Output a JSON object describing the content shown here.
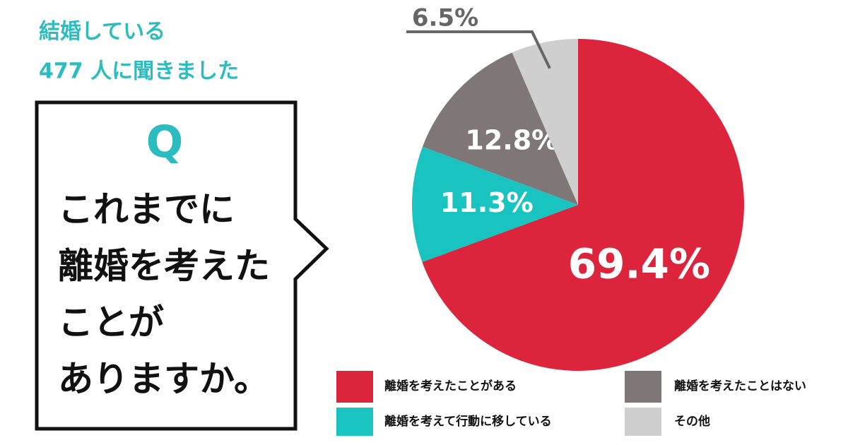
{
  "header": {
    "line1": "結婚している",
    "line2": "477 人に聞きました"
  },
  "question": {
    "mark": "Q",
    "lines": [
      "これまでに",
      "離婚を考えた",
      "ことが",
      "ありますか。"
    ]
  },
  "chart_data": {
    "type": "pie",
    "categories": [
      "離婚を考えたことがある",
      "離婚を考えて行動に移している",
      "離婚を考えたことはない",
      "その他"
    ],
    "values": [
      69.4,
      11.3,
      12.8,
      6.5
    ],
    "value_labels": [
      "69.4%",
      "11.3%",
      "12.8%",
      "6.5%"
    ],
    "colors": [
      "#dc253c",
      "#19c4c0",
      "#7f7777",
      "#cfcfcf"
    ]
  }
}
